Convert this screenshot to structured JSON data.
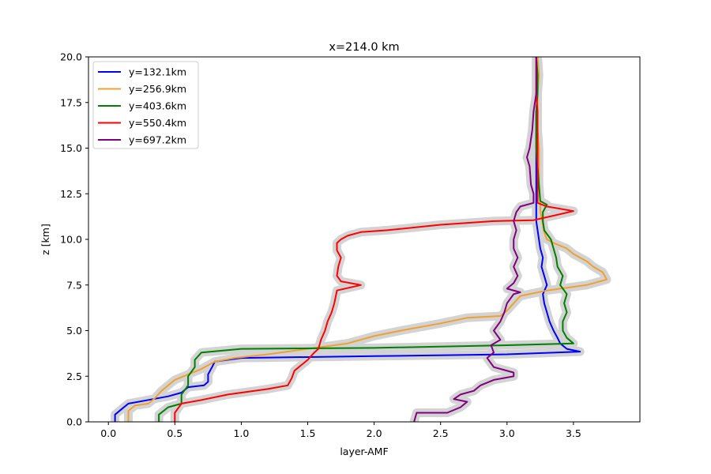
{
  "chart_data": {
    "type": "line",
    "title": "x=214.0 km",
    "xlabel": "layer-AMF",
    "ylabel": "z [km]",
    "xlim": [
      -0.15,
      4.0
    ],
    "ylim": [
      0,
      20
    ],
    "xticks": [
      0.0,
      0.5,
      1.0,
      1.5,
      2.0,
      2.5,
      3.0,
      3.5
    ],
    "xtick_labels": [
      "0.0",
      "0.5",
      "1.0",
      "1.5",
      "2.0",
      "2.5",
      "3.0",
      "3.5"
    ],
    "yticks": [
      0.0,
      2.5,
      5.0,
      7.5,
      10.0,
      12.5,
      15.0,
      17.5,
      20.0
    ],
    "ytick_labels": [
      "0.0",
      "2.5",
      "5.0",
      "7.5",
      "10.0",
      "12.5",
      "15.0",
      "17.5",
      "20.0"
    ],
    "grid": false,
    "legend_position": "top-left",
    "uncertainty_band_color": "#d3d3d3",
    "series": [
      {
        "name": "y=132.1km",
        "color": "#0000ff",
        "points": [
          [
            0.05,
            0.0
          ],
          [
            0.05,
            0.4
          ],
          [
            0.1,
            0.7
          ],
          [
            0.15,
            1.0
          ],
          [
            0.3,
            1.2
          ],
          [
            0.45,
            1.4
          ],
          [
            0.55,
            1.6
          ],
          [
            0.6,
            1.9
          ],
          [
            0.72,
            2.0
          ],
          [
            0.75,
            2.2
          ],
          [
            0.75,
            2.6
          ],
          [
            0.78,
            3.0
          ],
          [
            0.8,
            3.3
          ],
          [
            1.0,
            3.5
          ],
          [
            2.0,
            3.6
          ],
          [
            3.0,
            3.7
          ],
          [
            3.55,
            3.85
          ],
          [
            3.45,
            4.0
          ],
          [
            3.4,
            4.3
          ],
          [
            3.38,
            4.6
          ],
          [
            3.35,
            5.0
          ],
          [
            3.32,
            5.5
          ],
          [
            3.3,
            6.0
          ],
          [
            3.28,
            6.5
          ],
          [
            3.27,
            7.0
          ],
          [
            3.3,
            7.5
          ],
          [
            3.28,
            8.0
          ],
          [
            3.26,
            8.5
          ],
          [
            3.27,
            9.0
          ],
          [
            3.25,
            9.5
          ],
          [
            3.24,
            10.0
          ],
          [
            3.23,
            10.5
          ],
          [
            3.22,
            11.0
          ],
          [
            3.22,
            11.5
          ],
          [
            3.22,
            12.0
          ],
          [
            3.22,
            13.0
          ],
          [
            3.22,
            14.0
          ],
          [
            3.22,
            15.0
          ],
          [
            3.22,
            16.0
          ],
          [
            3.22,
            17.0
          ],
          [
            3.23,
            18.0
          ],
          [
            3.23,
            19.0
          ],
          [
            3.22,
            20.0
          ]
        ]
      },
      {
        "name": "y=256.9km",
        "color": "#f0a030",
        "points": [
          [
            0.15,
            0.0
          ],
          [
            0.15,
            0.6
          ],
          [
            0.2,
            0.9
          ],
          [
            0.3,
            1.0
          ],
          [
            0.35,
            1.3
          ],
          [
            0.4,
            1.7
          ],
          [
            0.45,
            2.0
          ],
          [
            0.5,
            2.3
          ],
          [
            0.6,
            2.6
          ],
          [
            0.7,
            2.9
          ],
          [
            0.8,
            3.3
          ],
          [
            0.95,
            3.5
          ],
          [
            1.2,
            3.7
          ],
          [
            1.5,
            4.0
          ],
          [
            1.8,
            4.3
          ],
          [
            2.0,
            4.7
          ],
          [
            2.2,
            5.0
          ],
          [
            2.5,
            5.4
          ],
          [
            2.7,
            5.7
          ],
          [
            2.95,
            5.8
          ],
          [
            3.0,
            6.1
          ],
          [
            3.05,
            6.5
          ],
          [
            3.1,
            6.9
          ],
          [
            3.3,
            7.2
          ],
          [
            3.6,
            7.5
          ],
          [
            3.75,
            7.8
          ],
          [
            3.72,
            8.2
          ],
          [
            3.65,
            8.5
          ],
          [
            3.6,
            8.8
          ],
          [
            3.5,
            9.2
          ],
          [
            3.45,
            9.5
          ],
          [
            3.35,
            9.8
          ],
          [
            3.3,
            10.0
          ],
          [
            3.28,
            10.4
          ],
          [
            3.27,
            10.8
          ],
          [
            3.26,
            11.2
          ],
          [
            3.25,
            11.6
          ],
          [
            3.25,
            12.0
          ],
          [
            3.24,
            13.0
          ],
          [
            3.24,
            14.0
          ],
          [
            3.24,
            15.0
          ],
          [
            3.23,
            16.0
          ],
          [
            3.23,
            17.0
          ],
          [
            3.23,
            18.0
          ],
          [
            3.24,
            19.0
          ],
          [
            3.23,
            20.0
          ]
        ]
      },
      {
        "name": "y=403.6km",
        "color": "#008000",
        "points": [
          [
            0.38,
            0.0
          ],
          [
            0.38,
            0.4
          ],
          [
            0.45,
            0.8
          ],
          [
            0.55,
            1.0
          ],
          [
            0.55,
            1.5
          ],
          [
            0.6,
            2.0
          ],
          [
            0.6,
            2.5
          ],
          [
            0.65,
            3.0
          ],
          [
            0.65,
            3.4
          ],
          [
            0.7,
            3.8
          ],
          [
            1.0,
            4.0
          ],
          [
            2.0,
            4.05
          ],
          [
            3.0,
            4.2
          ],
          [
            3.5,
            4.3
          ],
          [
            3.45,
            4.6
          ],
          [
            3.42,
            5.0
          ],
          [
            3.42,
            5.5
          ],
          [
            3.45,
            6.0
          ],
          [
            3.43,
            6.5
          ],
          [
            3.45,
            7.0
          ],
          [
            3.4,
            7.5
          ],
          [
            3.42,
            8.0
          ],
          [
            3.38,
            8.5
          ],
          [
            3.37,
            9.0
          ],
          [
            3.35,
            9.5
          ],
          [
            3.33,
            10.0
          ],
          [
            3.28,
            10.5
          ],
          [
            3.27,
            11.0
          ],
          [
            3.27,
            11.5
          ],
          [
            3.3,
            11.9
          ],
          [
            3.25,
            12.1
          ],
          [
            3.24,
            13.0
          ],
          [
            3.23,
            14.0
          ],
          [
            3.22,
            15.0
          ],
          [
            3.22,
            16.0
          ],
          [
            3.22,
            17.0
          ],
          [
            3.23,
            18.0
          ],
          [
            3.23,
            19.0
          ],
          [
            3.22,
            20.0
          ]
        ]
      },
      {
        "name": "y=550.4km",
        "color": "#ff0000",
        "points": [
          [
            0.5,
            0.0
          ],
          [
            0.5,
            0.5
          ],
          [
            0.55,
            1.0
          ],
          [
            0.7,
            1.2
          ],
          [
            0.9,
            1.5
          ],
          [
            1.2,
            1.8
          ],
          [
            1.35,
            2.0
          ],
          [
            1.38,
            2.4
          ],
          [
            1.4,
            2.8
          ],
          [
            1.45,
            3.1
          ],
          [
            1.5,
            3.4
          ],
          [
            1.55,
            3.8
          ],
          [
            1.58,
            4.0
          ],
          [
            1.6,
            4.5
          ],
          [
            1.63,
            5.0
          ],
          [
            1.65,
            5.5
          ],
          [
            1.68,
            6.0
          ],
          [
            1.7,
            6.5
          ],
          [
            1.72,
            7.2
          ],
          [
            1.9,
            7.5
          ],
          [
            1.75,
            7.7
          ],
          [
            1.72,
            8.0
          ],
          [
            1.73,
            8.5
          ],
          [
            1.75,
            9.0
          ],
          [
            1.72,
            9.4
          ],
          [
            1.72,
            9.8
          ],
          [
            1.75,
            10.0
          ],
          [
            1.8,
            10.2
          ],
          [
            1.9,
            10.4
          ],
          [
            2.1,
            10.5
          ],
          [
            2.5,
            10.8
          ],
          [
            2.9,
            11.0
          ],
          [
            3.2,
            11.05
          ],
          [
            3.35,
            11.3
          ],
          [
            3.5,
            11.55
          ],
          [
            3.3,
            11.8
          ],
          [
            3.23,
            12.0
          ],
          [
            3.23,
            13.0
          ],
          [
            3.23,
            14.0
          ],
          [
            3.23,
            15.0
          ],
          [
            3.23,
            16.0
          ],
          [
            3.23,
            17.0
          ],
          [
            3.22,
            18.0
          ],
          [
            3.22,
            19.0
          ],
          [
            3.22,
            20.0
          ]
        ]
      },
      {
        "name": "y=697.2km",
        "color": "#800080",
        "points": [
          [
            2.3,
            0.0
          ],
          [
            2.32,
            0.5
          ],
          [
            2.55,
            0.5
          ],
          [
            2.65,
            0.8
          ],
          [
            2.7,
            1.1
          ],
          [
            2.6,
            1.25
          ],
          [
            2.65,
            1.5
          ],
          [
            2.75,
            1.7
          ],
          [
            2.8,
            2.0
          ],
          [
            2.9,
            2.3
          ],
          [
            3.05,
            2.5
          ],
          [
            3.05,
            2.7
          ],
          [
            2.9,
            3.0
          ],
          [
            2.85,
            3.5
          ],
          [
            2.9,
            3.8
          ],
          [
            2.88,
            4.2
          ],
          [
            2.95,
            4.5
          ],
          [
            2.9,
            5.0
          ],
          [
            2.95,
            5.5
          ],
          [
            2.98,
            6.0
          ],
          [
            3.0,
            6.5
          ],
          [
            3.05,
            7.0
          ],
          [
            3.1,
            7.1
          ],
          [
            3.0,
            7.3
          ],
          [
            3.05,
            7.6
          ],
          [
            3.08,
            8.0
          ],
          [
            3.05,
            8.5
          ],
          [
            3.08,
            9.0
          ],
          [
            3.05,
            9.5
          ],
          [
            3.05,
            10.0
          ],
          [
            3.07,
            10.5
          ],
          [
            3.05,
            11.0
          ],
          [
            3.07,
            11.5
          ],
          [
            3.1,
            11.8
          ],
          [
            3.2,
            12.0
          ],
          [
            3.2,
            12.5
          ],
          [
            3.18,
            13.0
          ],
          [
            3.17,
            14.0
          ],
          [
            3.15,
            14.5
          ],
          [
            3.17,
            15.0
          ],
          [
            3.19,
            16.0
          ],
          [
            3.2,
            17.0
          ],
          [
            3.22,
            18.0
          ],
          [
            3.22,
            19.0
          ],
          [
            3.22,
            20.0
          ]
        ]
      }
    ]
  }
}
